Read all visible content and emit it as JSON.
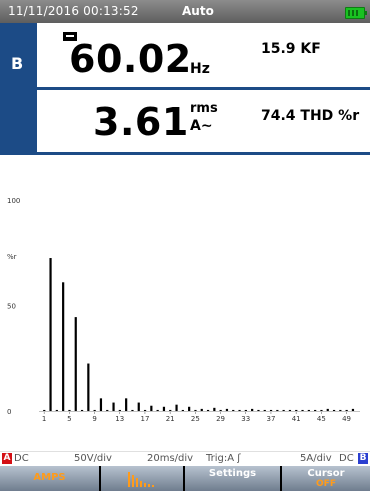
{
  "status": {
    "datetime": "11/11/2016 00:13:52",
    "mode": "Auto",
    "battery_icon": "battery-full-icon"
  },
  "readings": {
    "channel": "B",
    "row1": {
      "value": "60.02",
      "unit": "Hz",
      "secondary": "15.9 KF"
    },
    "row2": {
      "value": "3.61",
      "unit_top": "rms",
      "unit_bottom": "A∼",
      "secondary": "74.4 THD %r"
    }
  },
  "chart_data": {
    "type": "bar",
    "xlabel": "",
    "ylabel": "%r",
    "ylim": [
      0,
      100
    ],
    "y_ticks": [
      "0",
      "50",
      "100"
    ],
    "x_ticks": [
      "1",
      "5",
      "9",
      "13",
      "17",
      "21",
      "25",
      "29",
      "33",
      "37",
      "41",
      "45",
      "49"
    ],
    "categories": [
      1,
      2,
      3,
      4,
      5,
      6,
      7,
      8,
      9,
      10,
      11,
      12,
      13,
      14,
      15,
      16,
      17,
      18,
      19,
      20,
      21,
      22,
      23,
      24,
      25,
      26,
      27,
      28,
      29,
      30,
      31,
      32,
      33,
      34,
      35,
      36,
      37,
      38,
      39,
      40,
      41,
      42,
      43,
      44,
      45,
      46,
      47,
      48,
      49,
      50
    ],
    "values": [
      0.5,
      72.5,
      0.5,
      61,
      0.5,
      44.5,
      0.5,
      22.5,
      0.5,
      6,
      0.5,
      4,
      0.5,
      6,
      0.5,
      4,
      0.5,
      2.5,
      0.5,
      2,
      0.5,
      3,
      0.5,
      2,
      0.5,
      1,
      0.5,
      1.5,
      0.5,
      1,
      0.5,
      0.5,
      0.5,
      1,
      0.5,
      0.5,
      0.5,
      0.5,
      0.5,
      0.5,
      0.5,
      0.5,
      0.5,
      0.5,
      0.5,
      1,
      0.5,
      0.5,
      0.5,
      1
    ],
    "bar_color": "#000000"
  },
  "infobar": {
    "chA": "A",
    "coupA": "DC",
    "voltsdiv": "50V/div",
    "timediv": "20ms/div",
    "trig": "Trig:A ʃ",
    "ampsdiv": "5A/div",
    "coupB": "DC",
    "chB": "B"
  },
  "softkeys": {
    "f1_label": "AMPS",
    "f1_color": "#ff9b1a",
    "f2_icon": "harmonics-bars-icon",
    "f3_label": "Settings",
    "f4_label": "Cursor",
    "f4_sub": "OFF"
  }
}
